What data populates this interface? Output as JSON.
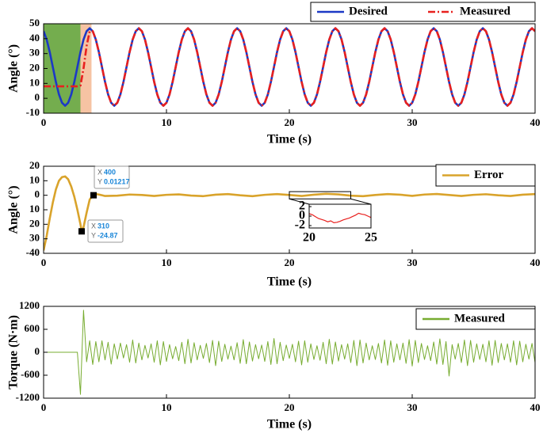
{
  "chart_data": [
    {
      "type": "line",
      "xlabel": "Time (s)",
      "ylabel": "Angle (°)",
      "xlim": [
        0,
        40
      ],
      "xticks": [
        0,
        10,
        20,
        30,
        40
      ],
      "ylim": [
        -10,
        50
      ],
      "yticks": [
        -10,
        0,
        10,
        20,
        30,
        40,
        50
      ],
      "spans": [
        {
          "x": [
            0,
            3
          ],
          "color": "#74ad4e"
        },
        {
          "x": [
            3,
            3.9
          ],
          "color": "#f6c3a3"
        }
      ],
      "x": [
        0,
        0.25,
        0.5,
        0.75,
        1,
        1.25,
        1.5,
        1.75,
        2,
        2.25,
        2.5,
        2.75,
        3,
        3.25,
        3.5,
        3.75,
        4,
        4.25,
        4.5,
        4.75,
        5,
        5.25,
        5.5,
        5.75,
        6,
        6.25,
        6.5,
        6.75,
        7,
        7.25,
        7.5,
        7.75,
        8,
        8.25,
        8.5,
        8.75,
        9,
        9.25,
        9.5,
        9.75,
        10,
        10.25,
        10.5,
        10.75,
        11,
        11.25,
        11.5,
        11.75,
        12,
        12.25,
        12.5,
        12.75,
        13,
        13.25,
        13.5,
        13.75,
        14,
        14.25,
        14.5,
        14.75,
        15,
        15.25,
        15.5,
        15.75,
        16,
        16.25,
        16.5,
        16.75,
        17,
        17.25,
        17.5,
        17.75,
        18,
        18.25,
        18.5,
        18.75,
        19,
        19.25,
        19.5,
        19.75,
        20,
        20.25,
        20.5,
        20.75,
        21,
        21.25,
        21.5,
        21.75,
        22,
        22.25,
        22.5,
        22.75,
        23,
        23.25,
        23.5,
        23.75,
        24,
        24.25,
        24.5,
        24.75,
        25,
        25.25,
        25.5,
        25.75,
        26,
        26.25,
        26.5,
        26.75,
        27,
        27.25,
        27.5,
        27.75,
        28,
        28.25,
        28.5,
        28.75,
        29,
        29.25,
        29.5,
        29.75,
        30,
        30.25,
        30.5,
        30.75,
        31,
        31.25,
        31.5,
        31.75,
        32,
        32.25,
        32.5,
        32.75,
        33,
        33.25,
        33.5,
        33.75,
        34,
        34.25,
        34.5,
        34.75,
        35,
        35.25,
        35.5,
        35.75,
        36,
        36.25,
        36.5,
        36.75,
        37,
        37.25,
        37.5,
        37.75,
        38,
        38.25,
        38.5,
        38.75,
        39,
        39.25,
        39.5,
        39.75,
        40
      ],
      "series": [
        {
          "name": "Desired",
          "color": "#1c39c6",
          "linestyle": "solid",
          "values": [
            45,
            39.4,
            31,
            21,
            11,
            2.6,
            -3,
            -5,
            -3,
            2.6,
            11,
            21,
            31,
            39.4,
            45,
            47,
            45,
            39.4,
            31,
            21,
            11,
            2.6,
            -3,
            -5,
            -3,
            2.6,
            11,
            21,
            31,
            39.4,
            45,
            47,
            45,
            39.4,
            31,
            21,
            11,
            2.6,
            -3,
            -5,
            -3,
            2.6,
            11,
            21,
            31,
            39.4,
            45,
            47,
            45,
            39.4,
            31,
            21,
            11,
            2.6,
            -3,
            -5,
            -3,
            2.6,
            11,
            21,
            31,
            39.4,
            45,
            47,
            45,
            39.4,
            31,
            21,
            11,
            2.6,
            -3,
            -5,
            -3,
            2.6,
            11,
            21,
            31,
            39.4,
            45,
            47,
            45,
            39.4,
            31,
            21,
            11,
            2.6,
            -3,
            -5,
            -3,
            2.6,
            11,
            21,
            31,
            39.4,
            45,
            47,
            45,
            39.4,
            31,
            21,
            11,
            2.6,
            -3,
            -5,
            -3,
            2.6,
            11,
            21,
            31,
            39.4,
            45,
            47,
            45,
            39.4,
            31,
            21,
            11,
            2.6,
            -3,
            -5,
            -3,
            2.6,
            11,
            21,
            31,
            39.4,
            45,
            47,
            45,
            39.4,
            31,
            21,
            11,
            2.6,
            -3,
            -5,
            -3,
            2.6,
            11,
            21,
            31,
            39.4,
            45,
            47,
            45,
            39.4,
            31,
            21,
            11,
            2.6,
            -3,
            -5,
            -3,
            2.6,
            11,
            21,
            31,
            39.4,
            45,
            47,
            45
          ]
        },
        {
          "name": "Measured",
          "color": "#e8201e",
          "linestyle": "dashdot",
          "values": [
            8,
            8,
            8,
            8,
            8,
            8,
            8,
            8,
            8,
            8,
            8,
            8,
            8.5,
            20,
            35,
            45,
            45,
            39.4,
            31,
            21,
            11,
            2.6,
            -3,
            -5,
            -3,
            2.6,
            11,
            21,
            31,
            39.4,
            45,
            47,
            45,
            39.4,
            31,
            21,
            11,
            2.6,
            -3,
            -5,
            -3,
            2.6,
            11,
            21,
            31,
            39.4,
            45,
            47,
            45,
            39.4,
            31,
            21,
            11,
            2.6,
            -3,
            -5,
            -3,
            2.6,
            11,
            21,
            31,
            39.4,
            45,
            47,
            45,
            39.4,
            31,
            21,
            11,
            2.6,
            -3,
            -5,
            -3,
            2.6,
            11,
            21,
            31,
            39.4,
            45,
            47,
            45,
            39.4,
            31,
            21,
            11,
            2.6,
            -3,
            -5,
            -3,
            2.6,
            11,
            21,
            31,
            39.4,
            45,
            47,
            45,
            39.4,
            31,
            21,
            11,
            2.6,
            -3,
            -5,
            -3,
            2.6,
            11,
            21,
            31,
            39.4,
            45,
            47,
            45,
            39.4,
            31,
            21,
            11,
            2.6,
            -3,
            -5,
            -3,
            2.6,
            11,
            21,
            31,
            39.4,
            45,
            47,
            45,
            39.4,
            31,
            21,
            11,
            2.6,
            -3,
            -5,
            -3,
            2.6,
            11,
            21,
            31,
            39.4,
            45,
            47,
            45,
            39.4,
            31,
            21,
            11,
            2.6,
            -3,
            -5,
            -3,
            2.6,
            11,
            21,
            31,
            39.4,
            45,
            47,
            45
          ]
        }
      ]
    },
    {
      "type": "line",
      "xlabel": "Time (s)",
      "ylabel": "Angle (°)",
      "xlim": [
        0,
        40
      ],
      "xticks": [
        0,
        10,
        20,
        30,
        40
      ],
      "ylim": [
        -40,
        20
      ],
      "yticks": [
        20,
        10,
        0,
        {
          "value": -10,
          "label": "10"
        },
        {
          "value": -20,
          "label": "20"
        },
        {
          "value": -30,
          "label": "30"
        },
        -40
      ],
      "x": [
        0,
        0.25,
        0.5,
        0.75,
        1,
        1.25,
        1.5,
        1.75,
        2,
        2.25,
        2.5,
        2.75,
        3,
        3.1,
        3.25,
        3.5,
        3.75,
        4,
        4.25,
        4.5,
        4.75,
        5,
        6,
        7,
        8,
        9,
        10,
        11,
        12,
        13,
        14,
        15,
        16,
        17,
        18,
        19,
        20,
        21,
        22,
        23,
        24,
        25,
        26,
        27,
        28,
        29,
        30,
        31,
        32,
        33,
        34,
        35,
        36,
        37,
        38,
        39,
        40
      ],
      "series": [
        {
          "name": "Error",
          "color": "#d9a32b",
          "values": [
            -38,
            -28,
            -16,
            -5,
            4,
            10,
            12.5,
            13,
            11,
            6,
            -1,
            -10,
            -20,
            -24.87,
            -22,
            -12,
            -3,
            0.01217,
            0.8,
            0.5,
            0,
            -0.5,
            -0.3,
            0.5,
            0.2,
            -0.5,
            0.3,
            0.6,
            -0.2,
            -0.6,
            0.4,
            0.8,
            0,
            -0.6,
            0.3,
            0.8,
            0.2,
            -0.5,
            0.4,
            1.0,
            0.6,
            -0.3,
            -0.6,
            0.2,
            0.8,
            0.4,
            -0.4,
            0.5,
            0.9,
            0.2,
            -0.5,
            0.3,
            0.7,
            0,
            -0.5,
            0.4,
            0.8
          ]
        }
      ],
      "datatips": [
        {
          "x_label": "X",
          "x": 310,
          "y_label": "Y",
          "y": -24.87
        },
        {
          "x_label": "X",
          "x": 400,
          "y_label": "Y",
          "y": 0.01217
        }
      ],
      "inset": {
        "xlim": [
          20,
          25
        ],
        "xticks": [
          20,
          25
        ],
        "ylim": [
          -2.5,
          2.5
        ],
        "yticks": [
          2,
          0,
          -2
        ],
        "x": [
          20,
          20.25,
          20.5,
          20.75,
          21,
          21.25,
          21.5,
          21.75,
          22,
          22.25,
          22.5,
          22.75,
          23,
          23.25,
          23.5,
          23.75,
          24,
          24.25,
          24.5,
          24.75,
          25
        ],
        "color": "#e8201e",
        "values": [
          0.5,
          0.3,
          -0.1,
          -0.5,
          -0.7,
          -0.9,
          -1.2,
          -1.0,
          -1.4,
          -1.3,
          -1.1,
          -0.8,
          -0.6,
          -0.4,
          -0.1,
          0.2,
          0.6,
          0.4,
          0.3,
          0,
          -0.3
        ]
      }
    },
    {
      "type": "line",
      "xlabel": "Time (s)",
      "ylabel": "Torque (N·m)",
      "xlim": [
        0,
        40
      ],
      "xticks": [
        0,
        10,
        20,
        30,
        40
      ],
      "ylim": [
        -1200,
        1200
      ],
      "yticks": [
        -1200,
        -600,
        0,
        600,
        1200
      ],
      "x": [
        0,
        0.25,
        0.5,
        0.75,
        1,
        1.25,
        1.5,
        1.75,
        2,
        2.25,
        2.5,
        2.75,
        3,
        3.25,
        3.5,
        3.75,
        4,
        4.25,
        4.5,
        4.75,
        5,
        5.25,
        5.5,
        5.75,
        6,
        6.25,
        6.5,
        6.75,
        7,
        7.25,
        7.5,
        7.75,
        8,
        8.25,
        8.5,
        8.75,
        9,
        9.25,
        9.5,
        9.75,
        10,
        10.25,
        10.5,
        10.75,
        11,
        11.25,
        11.5,
        11.75,
        12,
        12.25,
        12.5,
        12.75,
        13,
        13.25,
        13.5,
        13.75,
        14,
        14.25,
        14.5,
        14.75,
        15,
        15.25,
        15.5,
        15.75,
        16,
        16.25,
        16.5,
        16.75,
        17,
        17.25,
        17.5,
        17.75,
        18,
        18.25,
        18.5,
        18.75,
        19,
        19.25,
        19.5,
        19.75,
        20,
        20.25,
        20.5,
        20.75,
        21,
        21.25,
        21.5,
        21.75,
        22,
        22.25,
        22.5,
        22.75,
        23,
        23.25,
        23.5,
        23.75,
        24,
        24.25,
        24.5,
        24.75,
        25,
        25.25,
        25.5,
        25.75,
        26,
        26.25,
        26.5,
        26.75,
        27,
        27.25,
        27.5,
        27.75,
        28,
        28.25,
        28.5,
        28.75,
        29,
        29.25,
        29.5,
        29.75,
        30,
        30.25,
        30.5,
        30.75,
        31,
        31.25,
        31.5,
        31.75,
        32,
        32.25,
        32.5,
        32.75,
        33,
        33.25,
        33.5,
        33.75,
        34,
        34.25,
        34.5,
        34.75,
        35,
        35.25,
        35.5,
        35.75,
        36,
        36.25,
        36.5,
        36.75,
        37,
        37.25,
        37.5,
        37.75,
        38,
        38.25,
        38.5,
        38.75,
        39,
        39.25,
        39.5,
        39.75,
        40
      ],
      "series": [
        {
          "name": "Measured",
          "color": "#77ac30",
          "values": [
            0,
            0,
            0,
            0,
            0,
            0,
            0,
            0,
            0,
            0,
            0,
            0,
            -1100,
            1100,
            -250,
            300,
            -320,
            280,
            -250,
            300,
            -200,
            260,
            -310,
            220,
            -180,
            240,
            -150,
            200,
            -260,
            320,
            -280,
            240,
            -200,
            180,
            -150,
            220,
            -260,
            300,
            -330,
            280,
            -240,
            200,
            -170,
            150,
            -220,
            260,
            -300,
            340,
            -280,
            250,
            -200,
            180,
            -160,
            230,
            -270,
            310,
            -350,
            290,
            -240,
            210,
            -180,
            160,
            -200,
            250,
            -290,
            330,
            -300,
            270,
            -230,
            200,
            -170,
            190,
            -240,
            280,
            -320,
            360,
            -300,
            260,
            -220,
            190,
            -160,
            210,
            -250,
            290,
            -330,
            300,
            -260,
            220,
            -190,
            170,
            -210,
            260,
            -300,
            340,
            -310,
            270,
            -230,
            200,
            -180,
            220,
            -270,
            310,
            -350,
            320,
            -280,
            240,
            -200,
            170,
            -190,
            230,
            -280,
            320,
            -340,
            300,
            -260,
            220,
            -200,
            240,
            -290,
            330,
            -360,
            310,
            -270,
            230,
            -190,
            170,
            -220,
            270,
            -310,
            350,
            -320,
            280,
            -620,
            200,
            -180,
            230,
            -270,
            320,
            -350,
            310,
            -260,
            220,
            -190,
            210,
            -250,
            300,
            -340,
            310,
            -270,
            230,
            -200,
            220,
            -260,
            300,
            -330,
            290,
            -250,
            210,
            -180,
            230,
            -270
          ]
        }
      ]
    }
  ]
}
